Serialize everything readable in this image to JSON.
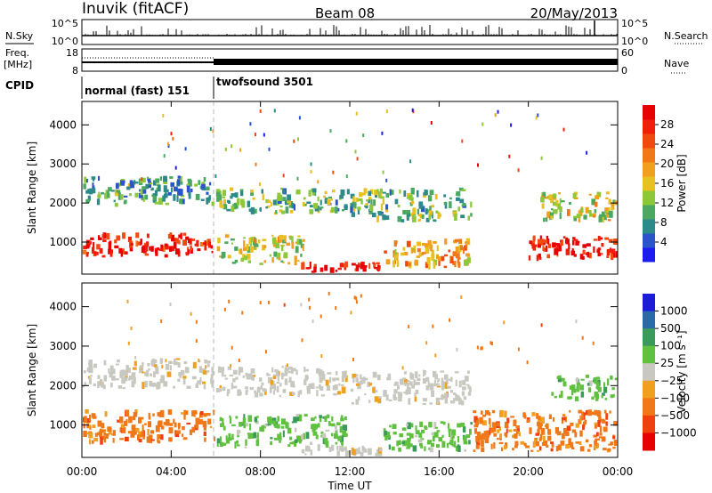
{
  "header": {
    "station": "Inuvik (fitACF)",
    "beam": "Beam 08",
    "date": "20/May/2013"
  },
  "sky_panel": {
    "left_label": "N.Sky",
    "right_label": "N.Search",
    "ticks_left": [
      "10^5",
      "10^0"
    ],
    "ticks_right": [
      "10^5",
      "10^0"
    ]
  },
  "freq_panel": {
    "left_label_1": "Freq.",
    "left_label_2": "[MHz]",
    "right_label": "Nave",
    "ticks_left": [
      "18",
      "8"
    ],
    "ticks_right": [
      "60",
      "0"
    ]
  },
  "cpid": {
    "label": "CPID",
    "mode_1": "normal (fast) 151",
    "mode_2": "twofsound 3501"
  },
  "colors": {
    "power": [
      "#1c1cf0",
      "#2a55c8",
      "#2e8a8a",
      "#4aa860",
      "#8cc83a",
      "#e8c020",
      "#f0a020",
      "#f07818",
      "#f04a10",
      "#f01e0a",
      "#e80000"
    ],
    "velocity": [
      "#e80000",
      "#f04010",
      "#f07818",
      "#f0a020",
      "#c8c8c0",
      "#c8c8c0",
      "#60c040",
      "#3a9a5a",
      "#2a6aa8",
      "#1c1cd8"
    ],
    "dashed_line": "#bbbbbb"
  },
  "chart_data": [
    {
      "type": "heatmap",
      "name": "power",
      "ylabel": "Slant Range [km]",
      "xlabel": "",
      "ylim": [
        180,
        4600
      ],
      "yticks": [
        1000,
        2000,
        3000,
        4000
      ],
      "colorbar_label": "Power [dB]",
      "colorbar_ticks": [
        4,
        8,
        12,
        16,
        20,
        24,
        28
      ],
      "colorbar_range": [
        0,
        32
      ],
      "regions": [
        {
          "t": [
            0,
            6
          ],
          "r": [
            600,
            1250
          ],
          "value": 28
        },
        {
          "t": [
            0,
            6
          ],
          "r": [
            1900,
            2700
          ],
          "value": 8
        },
        {
          "t": [
            6,
            10
          ],
          "r": [
            400,
            1200
          ],
          "value": 14
        },
        {
          "t": [
            6,
            12
          ],
          "r": [
            1700,
            2400
          ],
          "value": 10
        },
        {
          "t": [
            9.8,
            13.5
          ],
          "r": [
            200,
            520
          ],
          "value": 28
        },
        {
          "t": [
            13.5,
            17.5
          ],
          "r": [
            300,
            1100
          ],
          "value": 18
        },
        {
          "t": [
            12,
            17.5
          ],
          "r": [
            1500,
            2400
          ],
          "value": 10
        },
        {
          "t": [
            20,
            24
          ],
          "r": [
            500,
            1200
          ],
          "value": 28
        },
        {
          "t": [
            20.5,
            24
          ],
          "r": [
            1500,
            2300
          ],
          "value": 14
        }
      ]
    },
    {
      "type": "heatmap",
      "name": "velocity",
      "ylabel": "Slant Range [km]",
      "xlabel": "Time UT",
      "ylim": [
        180,
        4600
      ],
      "yticks": [
        1000,
        2000,
        3000,
        4000
      ],
      "xticks": [
        "00:00",
        "04:00",
        "08:00",
        "12:00",
        "16:00",
        "20:00",
        "00:00"
      ],
      "colorbar_label": "Velocity [m s⁻¹]",
      "colorbar_ticks": [
        "1000",
        "500",
        "100",
        "25",
        "−25",
        "−100",
        "−500",
        "−1000"
      ],
      "regions": [
        {
          "t": [
            0,
            6
          ],
          "r": [
            500,
            1400
          ],
          "value": -300
        },
        {
          "t": [
            0,
            6
          ],
          "r": [
            1900,
            2700
          ],
          "value": 0
        },
        {
          "t": [
            6,
            12
          ],
          "r": [
            400,
            1300
          ],
          "value": 80
        },
        {
          "t": [
            6,
            12
          ],
          "r": [
            1700,
            2500
          ],
          "value": 0
        },
        {
          "t": [
            9.8,
            13.5
          ],
          "r": [
            200,
            520
          ],
          "value": 0
        },
        {
          "t": [
            13.5,
            17.5
          ],
          "r": [
            300,
            1100
          ],
          "value": 40
        },
        {
          "t": [
            12,
            17.5
          ],
          "r": [
            1500,
            2400
          ],
          "value": 0
        },
        {
          "t": [
            17.5,
            24
          ],
          "r": [
            300,
            1400
          ],
          "value": -400
        },
        {
          "t": [
            21,
            24
          ],
          "r": [
            1600,
            2300
          ],
          "value": 60
        }
      ]
    }
  ]
}
